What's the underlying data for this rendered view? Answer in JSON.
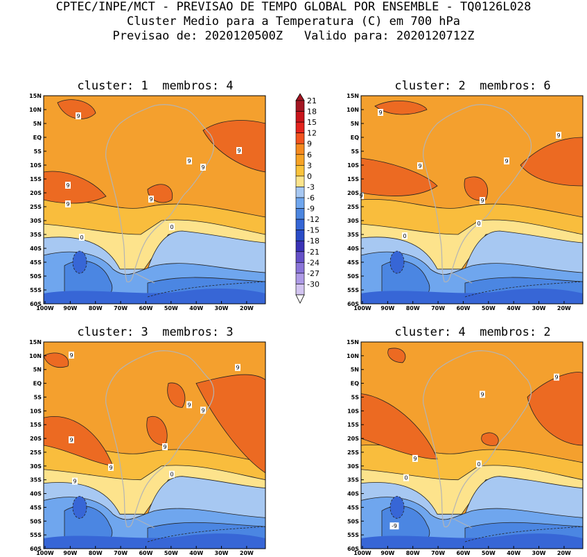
{
  "header": {
    "line1": "CPTEC/INPE/MCT - PREVISAO DE TEMPO GLOBAL POR ENSEMBLE - TQ0126L028",
    "line2": "Cluster Medio para a Temperatura (C) em 700 hPa",
    "line3": "Previsao de: 2020120500Z   Valido para: 2020120712Z"
  },
  "panels": [
    {
      "title": "cluster: 1  membros: 4",
      "contour_labels": [
        "9",
        "9",
        "9",
        "9",
        "9",
        "9",
        "9",
        "0",
        "0"
      ]
    },
    {
      "title": "cluster: 2  membros: 6",
      "contour_labels": [
        "9",
        "9",
        "9",
        "9",
        "9",
        "9",
        "0",
        "0"
      ]
    },
    {
      "title": "cluster: 3  membros: 3",
      "contour_labels": [
        "9",
        "9",
        "9",
        "9",
        "9",
        "9",
        "9",
        "9",
        "0",
        "0"
      ]
    },
    {
      "title": "cluster: 4  membros: 2",
      "contour_labels": [
        "9",
        "9",
        "9",
        "0",
        "0",
        "-9"
      ]
    }
  ],
  "axes": {
    "lat_labels": [
      "15N",
      "10N",
      "5N",
      "EQ",
      "5S",
      "10S",
      "15S",
      "20S",
      "25S",
      "30S",
      "35S",
      "40S",
      "45S",
      "50S",
      "55S",
      "60S"
    ],
    "lon_labels": [
      "100W",
      "90W",
      "80W",
      "70W",
      "60W",
      "50W",
      "40W",
      "30W",
      "20W"
    ]
  },
  "colorbar": {
    "labels": [
      "21",
      "18",
      "15",
      "12",
      "9",
      "6",
      "3",
      "0",
      "-3",
      "-6",
      "-9",
      "-12",
      "-15",
      "-18",
      "-21",
      "-24",
      "-27",
      "-30"
    ],
    "colors": [
      "#a31622",
      "#c8141b",
      "#e3231d",
      "#f2531f",
      "#f58a1f",
      "#f7a325",
      "#fbc33b",
      "#fde48c",
      "#a7c8f2",
      "#6fa6ee",
      "#4c86e0",
      "#3566d6",
      "#2a4cc8",
      "#3a32b6",
      "#6550c8",
      "#8a74d8",
      "#ae9ae6",
      "#d2c4f0"
    ]
  },
  "colors": {
    "map_orange": "#f4a02e",
    "map_dark_orange": "#ec6a22",
    "map_light_orange": "#f9bd3d",
    "map_yellow": "#fde38c",
    "map_light_blue": "#a7c8f2",
    "map_blue": "#6fa6ee",
    "map_mid_blue": "#4b86e2",
    "map_deep_blue": "#3766d6",
    "coast": "#b4b4b4"
  }
}
